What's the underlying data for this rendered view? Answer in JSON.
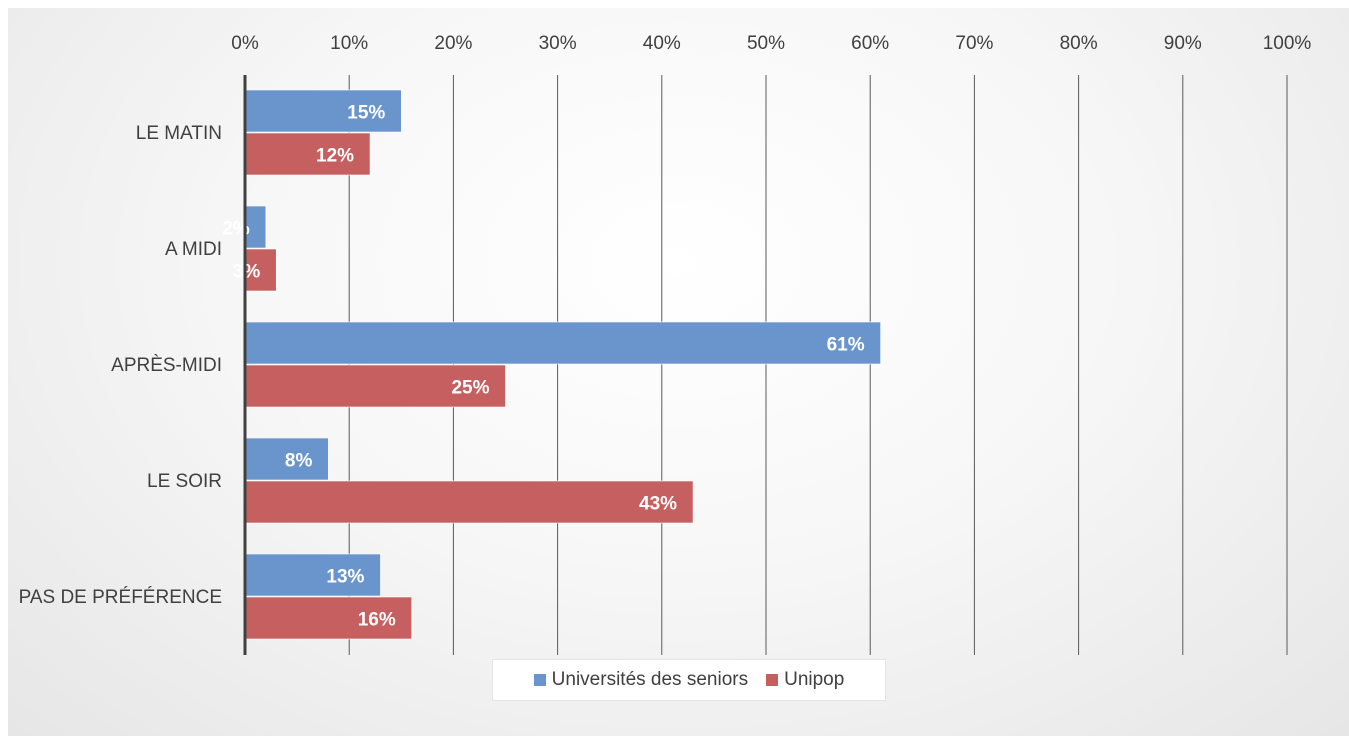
{
  "chart_data": {
    "type": "bar",
    "orientation": "horizontal",
    "categories": [
      "LE MATIN",
      "A MIDI",
      "APRÈS-MIDI",
      "LE SOIR",
      "PAS DE PRÉFÉRENCE"
    ],
    "series": [
      {
        "name": "Universités des seniors",
        "values": [
          15,
          2,
          61,
          8,
          13
        ],
        "labels": [
          "15%",
          "2%",
          "61%",
          "8%",
          "13%"
        ],
        "color": "#6A95CC"
      },
      {
        "name": "Unipop",
        "values": [
          12,
          3,
          25,
          43,
          16
        ],
        "labels": [
          "12%",
          "3%",
          "25%",
          "43%",
          "16%"
        ],
        "color": "#C65F5F"
      }
    ],
    "x_ticks": [
      "0%",
      "10%",
      "20%",
      "30%",
      "40%",
      "50%",
      "60%",
      "70%",
      "80%",
      "90%",
      "100%"
    ],
    "xlim": [
      0,
      100
    ],
    "grid": true,
    "legend_position": "bottom"
  }
}
